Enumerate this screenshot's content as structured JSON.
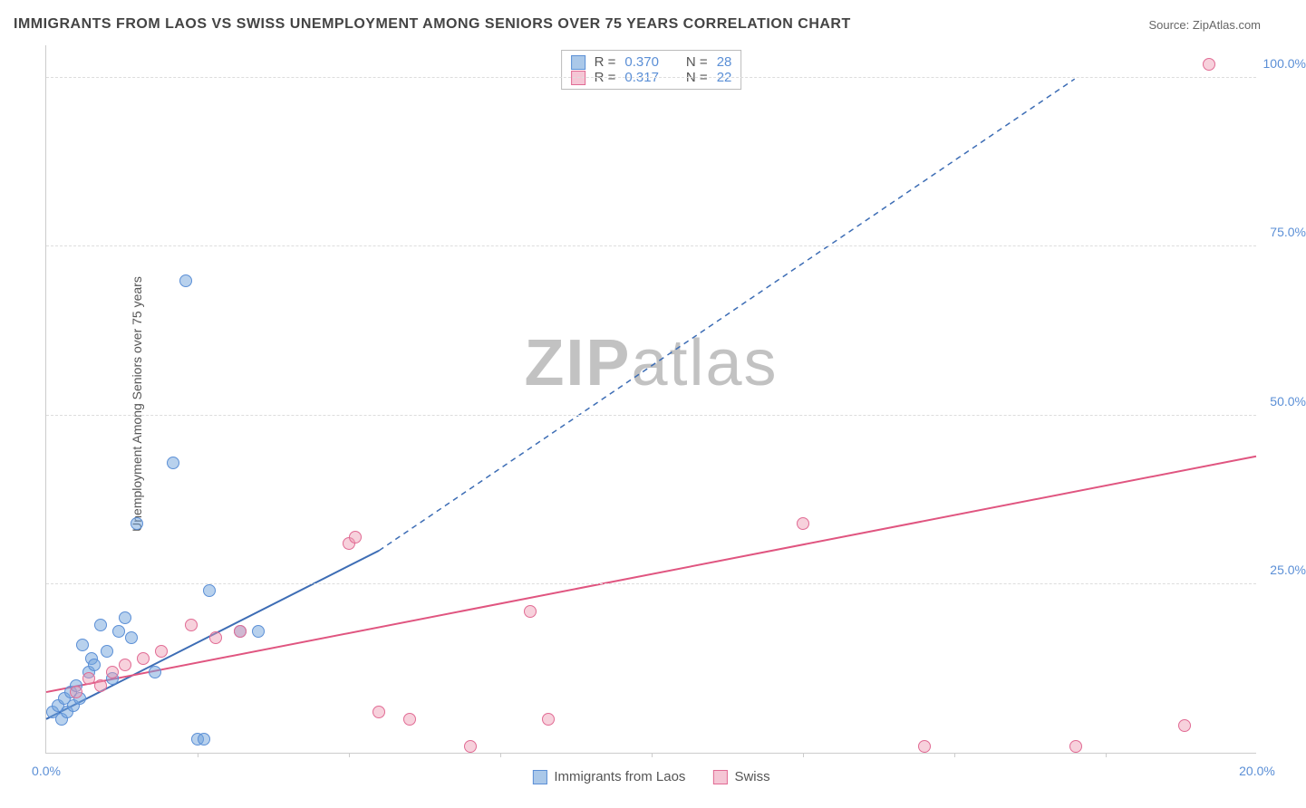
{
  "title": "IMMIGRANTS FROM LAOS VS SWISS UNEMPLOYMENT AMONG SENIORS OVER 75 YEARS CORRELATION CHART",
  "source_label": "Source: ZipAtlas.com",
  "ylabel": "Unemployment Among Seniors over 75 years",
  "watermark_zip": "ZIP",
  "watermark_atlas": "atlas",
  "chart": {
    "type": "scatter",
    "xlim": [
      0,
      20
    ],
    "ylim": [
      0,
      105
    ],
    "xtick_positions": [
      0,
      2.5,
      5,
      7.5,
      10,
      12.5,
      15,
      17.5,
      20
    ],
    "xtick_labels": {
      "0": "0.0%",
      "20": "20.0%"
    },
    "ytick_positions": [
      25,
      50,
      75,
      100
    ],
    "ytick_labels": {
      "25": "25.0%",
      "50": "50.0%",
      "75": "75.0%",
      "100": "100.0%"
    },
    "grid_h": [
      25,
      50,
      75,
      100
    ],
    "grid_v": [
      2.5,
      5,
      7.5,
      10,
      12.5,
      15,
      17.5
    ],
    "background_color": "#ffffff",
    "grid_color": "#dddddd",
    "series": [
      {
        "name": "Immigrants from Laos",
        "color_fill": "rgba(114,163,219,0.5)",
        "color_stroke": "#5b8fd6",
        "r_value": "0.370",
        "n_value": "28",
        "points": [
          [
            0.1,
            6
          ],
          [
            0.2,
            7
          ],
          [
            0.25,
            5
          ],
          [
            0.3,
            8
          ],
          [
            0.35,
            6
          ],
          [
            0.4,
            9
          ],
          [
            0.45,
            7
          ],
          [
            0.5,
            10
          ],
          [
            0.55,
            8
          ],
          [
            0.6,
            16
          ],
          [
            0.7,
            12
          ],
          [
            0.75,
            14
          ],
          [
            0.8,
            13
          ],
          [
            0.9,
            19
          ],
          [
            1.0,
            15
          ],
          [
            1.1,
            11
          ],
          [
            1.2,
            18
          ],
          [
            1.3,
            20
          ],
          [
            1.4,
            17
          ],
          [
            1.5,
            34
          ],
          [
            1.8,
            12
          ],
          [
            2.1,
            43
          ],
          [
            2.3,
            70
          ],
          [
            2.5,
            2
          ],
          [
            2.6,
            2
          ],
          [
            2.7,
            24
          ],
          [
            3.2,
            18
          ],
          [
            3.5,
            18
          ]
        ],
        "trend": {
          "x1": 0,
          "y1": 5,
          "x2": 5.5,
          "y2": 30,
          "dash_from_x": 5.5,
          "dash_to_x": 17,
          "dash_to_y": 100,
          "stroke": "#3d6db5",
          "width": 2
        }
      },
      {
        "name": "Swiss",
        "color_fill": "rgba(237,152,178,0.45)",
        "color_stroke": "#e16b94",
        "r_value": "0.317",
        "n_value": "22",
        "points": [
          [
            0.5,
            9
          ],
          [
            0.7,
            11
          ],
          [
            0.9,
            10
          ],
          [
            1.1,
            12
          ],
          [
            1.3,
            13
          ],
          [
            1.6,
            14
          ],
          [
            1.9,
            15
          ],
          [
            2.4,
            19
          ],
          [
            2.8,
            17
          ],
          [
            3.2,
            18
          ],
          [
            5.0,
            31
          ],
          [
            5.1,
            32
          ],
          [
            5.5,
            6
          ],
          [
            6.0,
            5
          ],
          [
            7.0,
            1
          ],
          [
            8.0,
            21
          ],
          [
            8.3,
            5
          ],
          [
            12.5,
            34
          ],
          [
            14.5,
            1
          ],
          [
            17.0,
            1
          ],
          [
            18.8,
            4
          ],
          [
            19.2,
            102
          ]
        ],
        "trend": {
          "x1": 0,
          "y1": 9,
          "x2": 20,
          "y2": 44,
          "stroke": "#e05580",
          "width": 2
        }
      }
    ]
  },
  "legend_top": {
    "r_label": "R =",
    "n_label": "N ="
  },
  "legend_bottom": [
    "Immigrants from Laos",
    "Swiss"
  ]
}
